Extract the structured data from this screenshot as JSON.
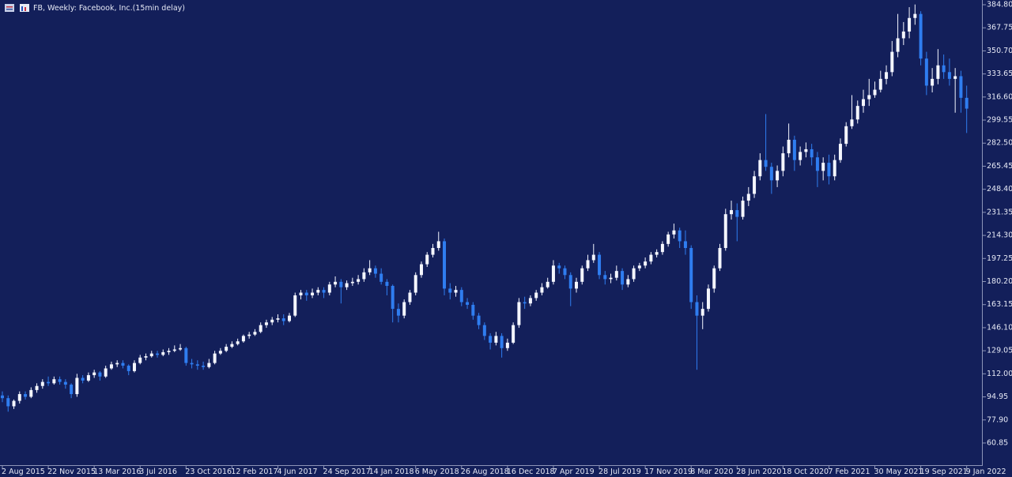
{
  "chart_data": {
    "type": "candlestick",
    "title": "FB, Weekly:  Facebook, Inc.(15min delay)",
    "up_color": "#f4f6ff",
    "down_color": "#2f7df0",
    "ylim": [
      43.9,
      388.3
    ],
    "yticks": [
      {
        "value": 60.85,
        "label": "60.85"
      },
      {
        "value": 77.9,
        "label": "77.90"
      },
      {
        "value": 94.95,
        "label": "94.95"
      },
      {
        "value": 112,
        "label": "112.00"
      },
      {
        "value": 129.05,
        "label": "129.05"
      },
      {
        "value": 146.1,
        "label": "146.10"
      },
      {
        "value": 163.15,
        "label": "163.15"
      },
      {
        "value": 180.2,
        "label": "180.20"
      },
      {
        "value": 197.25,
        "label": "197.25"
      },
      {
        "value": 214.3,
        "label": "214.30"
      },
      {
        "value": 231.35,
        "label": "231.35"
      },
      {
        "value": 248.4,
        "label": "248.40"
      },
      {
        "value": 265.45,
        "label": "265.45"
      },
      {
        "value": 282.5,
        "label": "282.50"
      },
      {
        "value": 299.55,
        "label": "299.55"
      },
      {
        "value": 316.6,
        "label": "316.60"
      },
      {
        "value": 333.65,
        "label": "333.65"
      },
      {
        "value": 350.7,
        "label": "350.70"
      },
      {
        "value": 367.75,
        "label": "367.75"
      },
      {
        "value": 384.8,
        "label": "384.80"
      }
    ],
    "xtick_labels": [
      "2 Aug 2015",
      "22 Nov 2015",
      "13 Mar 2016",
      "3 Jul 2016",
      "23 Oct 2016",
      "12 Feb 2017",
      "4 Jun 2017",
      "24 Sep 2017",
      "14 Jan 2018",
      "6 May 2018",
      "26 Aug 2018",
      "16 Dec 2018",
      "7 Apr 2019",
      "28 Jul 2019",
      "17 Nov 2019",
      "8 Mar 2020",
      "28 Jun 2020",
      "18 Oct 2020",
      "7 Feb 2021",
      "30 May 2021",
      "19 Sep 2021",
      "9 Jan 2022"
    ],
    "ohlc": [
      [
        96,
        99,
        91,
        94
      ],
      [
        94,
        96,
        84,
        88
      ],
      [
        88,
        93,
        86,
        92
      ],
      [
        92,
        99,
        90,
        97
      ],
      [
        97,
        99,
        93,
        95
      ],
      [
        95,
        102,
        94,
        100
      ],
      [
        100,
        105,
        98,
        103
      ],
      [
        103,
        108,
        101,
        106
      ],
      [
        106,
        110,
        103,
        105
      ],
      [
        105,
        110,
        104,
        108
      ],
      [
        108,
        110,
        104,
        106
      ],
      [
        106,
        108,
        101,
        104
      ],
      [
        104,
        105,
        94,
        97
      ],
      [
        97,
        112,
        95,
        109
      ],
      [
        109,
        111,
        105,
        107
      ],
      [
        107,
        113,
        106,
        111
      ],
      [
        111,
        115,
        109,
        113
      ],
      [
        113,
        114,
        107,
        110
      ],
      [
        110,
        118,
        109,
        116
      ],
      [
        116,
        121,
        115,
        119
      ],
      [
        119,
        122,
        117,
        120
      ],
      [
        120,
        122,
        116,
        118
      ],
      [
        118,
        119,
        111,
        114
      ],
      [
        114,
        122,
        113,
        120
      ],
      [
        120,
        126,
        119,
        124
      ],
      [
        124,
        127,
        122,
        125
      ],
      [
        125,
        129,
        124,
        127
      ],
      [
        127,
        129,
        124,
        126
      ],
      [
        126,
        130,
        125,
        128
      ],
      [
        128,
        131,
        126,
        129
      ],
      [
        129,
        133,
        128,
        130
      ],
      [
        130,
        134,
        129,
        131
      ],
      [
        131,
        132,
        118,
        120
      ],
      [
        120,
        123,
        116,
        119
      ],
      [
        119,
        122,
        115,
        118
      ],
      [
        118,
        121,
        115,
        117
      ],
      [
        117,
        123,
        116,
        120
      ],
      [
        120,
        129,
        119,
        127
      ],
      [
        127,
        131,
        126,
        129
      ],
      [
        129,
        134,
        128,
        132
      ],
      [
        132,
        136,
        131,
        134
      ],
      [
        134,
        138,
        133,
        136
      ],
      [
        136,
        141,
        135,
        140
      ],
      [
        140,
        143,
        138,
        141
      ],
      [
        141,
        145,
        140,
        143
      ],
      [
        143,
        150,
        142,
        148
      ],
      [
        148,
        152,
        146,
        150
      ],
      [
        150,
        154,
        148,
        152
      ],
      [
        152,
        156,
        150,
        153
      ],
      [
        153,
        156,
        148,
        151
      ],
      [
        151,
        157,
        150,
        155
      ],
      [
        155,
        172,
        154,
        170
      ],
      [
        170,
        174,
        167,
        172
      ],
      [
        172,
        174,
        166,
        170
      ],
      [
        170,
        175,
        168,
        172
      ],
      [
        172,
        176,
        170,
        174
      ],
      [
        174,
        176,
        168,
        172
      ],
      [
        172,
        180,
        170,
        178
      ],
      [
        178,
        184,
        176,
        180
      ],
      [
        180,
        182,
        164,
        176
      ],
      [
        176,
        181,
        174,
        179
      ],
      [
        179,
        183,
        177,
        180
      ],
      [
        180,
        185,
        178,
        182
      ],
      [
        182,
        190,
        180,
        187
      ],
      [
        187,
        196,
        185,
        190
      ],
      [
        190,
        192,
        183,
        186
      ],
      [
        186,
        190,
        178,
        180
      ],
      [
        180,
        182,
        170,
        177
      ],
      [
        177,
        178,
        150,
        160
      ],
      [
        160,
        164,
        150,
        155
      ],
      [
        155,
        167,
        153,
        165
      ],
      [
        165,
        174,
        163,
        172
      ],
      [
        172,
        187,
        170,
        185
      ],
      [
        185,
        195,
        183,
        193
      ],
      [
        193,
        202,
        191,
        200
      ],
      [
        200,
        208,
        198,
        205
      ],
      [
        205,
        217,
        203,
        210
      ],
      [
        210,
        212,
        170,
        175
      ],
      [
        175,
        179,
        167,
        172
      ],
      [
        172,
        177,
        169,
        174
      ],
      [
        174,
        176,
        162,
        165
      ],
      [
        165,
        168,
        160,
        163
      ],
      [
        163,
        165,
        152,
        155
      ],
      [
        155,
        157,
        145,
        148
      ],
      [
        148,
        150,
        137,
        140
      ],
      [
        140,
        142,
        130,
        135
      ],
      [
        135,
        143,
        133,
        140
      ],
      [
        140,
        142,
        124,
        131
      ],
      [
        131,
        138,
        129,
        135
      ],
      [
        135,
        150,
        134,
        148
      ],
      [
        148,
        168,
        146,
        165
      ],
      [
        165,
        169,
        160,
        164
      ],
      [
        164,
        170,
        162,
        168
      ],
      [
        168,
        174,
        166,
        172
      ],
      [
        172,
        179,
        170,
        176
      ],
      [
        176,
        183,
        175,
        180
      ],
      [
        180,
        196,
        178,
        192
      ],
      [
        192,
        194,
        186,
        190
      ],
      [
        190,
        192,
        182,
        185
      ],
      [
        185,
        187,
        162,
        175
      ],
      [
        175,
        183,
        172,
        180
      ],
      [
        180,
        192,
        178,
        190
      ],
      [
        190,
        200,
        188,
        196
      ],
      [
        196,
        208,
        194,
        200
      ],
      [
        200,
        202,
        182,
        185
      ],
      [
        185,
        188,
        178,
        182
      ],
      [
        182,
        186,
        179,
        183
      ],
      [
        183,
        192,
        181,
        188
      ],
      [
        188,
        190,
        174,
        178
      ],
      [
        178,
        185,
        176,
        182
      ],
      [
        182,
        192,
        180,
        190
      ],
      [
        190,
        194,
        188,
        192
      ],
      [
        192,
        198,
        190,
        195
      ],
      [
        195,
        202,
        193,
        200
      ],
      [
        200,
        204,
        198,
        202
      ],
      [
        202,
        210,
        200,
        208
      ],
      [
        208,
        217,
        206,
        215
      ],
      [
        215,
        223,
        212,
        218
      ],
      [
        218,
        220,
        205,
        210
      ],
      [
        210,
        218,
        200,
        205
      ],
      [
        205,
        207,
        160,
        165
      ],
      [
        165,
        170,
        115,
        155
      ],
      [
        155,
        165,
        145,
        160
      ],
      [
        160,
        178,
        158,
        175
      ],
      [
        175,
        192,
        172,
        190
      ],
      [
        190,
        208,
        188,
        205
      ],
      [
        205,
        234,
        203,
        230
      ],
      [
        230,
        240,
        226,
        233
      ],
      [
        233,
        238,
        210,
        228
      ],
      [
        228,
        243,
        226,
        240
      ],
      [
        240,
        250,
        236,
        245
      ],
      [
        245,
        262,
        242,
        258
      ],
      [
        258,
        275,
        255,
        270
      ],
      [
        270,
        304,
        262,
        265
      ],
      [
        265,
        268,
        245,
        255
      ],
      [
        255,
        266,
        250,
        262
      ],
      [
        262,
        280,
        258,
        275
      ],
      [
        275,
        297,
        272,
        285
      ],
      [
        285,
        288,
        262,
        270
      ],
      [
        270,
        280,
        266,
        276
      ],
      [
        276,
        283,
        272,
        278
      ],
      [
        278,
        282,
        266,
        272
      ],
      [
        272,
        276,
        250,
        262
      ],
      [
        262,
        272,
        255,
        268
      ],
      [
        268,
        274,
        252,
        258
      ],
      [
        258,
        274,
        255,
        270
      ],
      [
        270,
        286,
        268,
        282
      ],
      [
        282,
        298,
        280,
        295
      ],
      [
        295,
        318,
        293,
        300
      ],
      [
        300,
        314,
        297,
        310
      ],
      [
        310,
        322,
        305,
        315
      ],
      [
        315,
        330,
        310,
        318
      ],
      [
        318,
        328,
        316,
        322
      ],
      [
        322,
        336,
        320,
        330
      ],
      [
        330,
        340,
        326,
        335
      ],
      [
        335,
        358,
        332,
        350
      ],
      [
        350,
        378,
        346,
        360
      ],
      [
        360,
        372,
        355,
        365
      ],
      [
        365,
        383,
        360,
        375
      ],
      [
        375,
        385,
        370,
        378
      ],
      [
        378,
        380,
        340,
        345
      ],
      [
        345,
        350,
        318,
        325
      ],
      [
        325,
        338,
        320,
        330
      ],
      [
        330,
        352,
        326,
        340
      ],
      [
        340,
        348,
        330,
        335
      ],
      [
        335,
        345,
        325,
        330
      ],
      [
        330,
        338,
        305,
        332
      ],
      [
        332,
        336,
        305,
        316
      ],
      [
        316,
        325,
        290,
        308
      ]
    ]
  }
}
